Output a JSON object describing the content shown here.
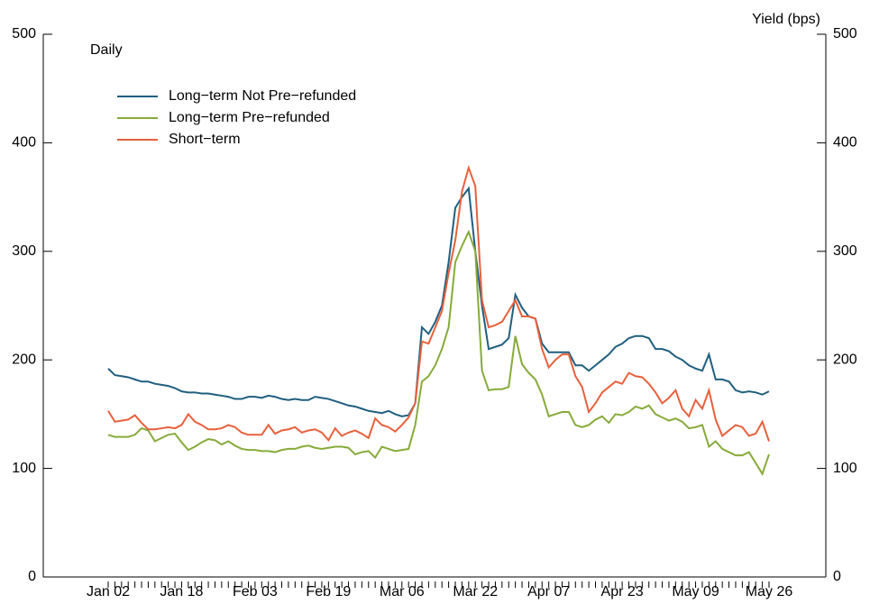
{
  "chart_data": {
    "type": "line",
    "y2label": "Yield (bps)",
    "annotation": "Daily",
    "legend": "upper left",
    "categories": [
      "Jan 02",
      null,
      null,
      null,
      null,
      null,
      null,
      null,
      null,
      null,
      null,
      "Jan 18",
      null,
      null,
      null,
      null,
      null,
      null,
      null,
      null,
      null,
      null,
      "Feb 03",
      null,
      null,
      null,
      null,
      null,
      null,
      null,
      null,
      null,
      null,
      "Feb 19",
      null,
      null,
      null,
      null,
      null,
      null,
      null,
      null,
      null,
      null,
      "Mar 06",
      null,
      null,
      null,
      null,
      null,
      null,
      null,
      null,
      null,
      null,
      "Mar 22",
      null,
      null,
      null,
      null,
      null,
      null,
      null,
      null,
      null,
      null,
      "Apr 07",
      null,
      null,
      null,
      null,
      null,
      null,
      null,
      null,
      null,
      null,
      "Apr 23",
      null,
      null,
      null,
      null,
      null,
      null,
      null,
      null,
      null,
      null,
      "May 09",
      null,
      null,
      null,
      null,
      null,
      null,
      null,
      null,
      null,
      null,
      "May 26"
    ],
    "series": [
      {
        "name": "Long−term Not Pre−refunded",
        "color": "#1f5f80",
        "values": [
          192,
          186,
          185,
          184,
          182,
          180,
          180,
          178,
          177,
          176,
          174,
          171,
          170,
          170,
          169,
          169,
          168,
          167,
          166,
          164,
          164,
          166,
          166,
          165,
          167,
          166,
          164,
          163,
          164,
          163,
          163,
          166,
          165,
          164,
          162,
          160,
          158,
          157,
          155,
          153,
          152,
          151,
          153,
          150,
          148,
          149,
          160,
          230,
          224,
          235,
          250,
          290,
          340,
          350,
          358,
          300,
          250,
          210,
          212,
          214,
          220,
          260,
          248,
          240,
          238,
          215,
          207,
          207,
          207,
          207,
          195,
          195,
          190,
          195,
          200,
          205,
          212,
          215,
          220,
          222,
          222,
          220,
          210,
          210,
          208,
          203,
          200,
          195,
          192,
          190,
          205,
          182,
          182,
          180,
          172,
          170,
          171,
          170,
          168,
          171
        ]
      },
      {
        "name": "Long−term Pre−refunded",
        "color": "#86ab3a",
        "values": [
          131,
          129,
          129,
          129,
          131,
          137,
          135,
          125,
          128,
          131,
          132,
          124,
          117,
          120,
          124,
          127,
          126,
          122,
          125,
          121,
          118,
          117,
          117,
          116,
          116,
          115,
          117,
          118,
          118,
          120,
          121,
          119,
          118,
          119,
          120,
          120,
          119,
          113,
          115,
          116,
          110,
          120,
          118,
          116,
          117,
          118,
          140,
          180,
          185,
          195,
          210,
          230,
          290,
          305,
          318,
          300,
          190,
          172,
          173,
          173,
          175,
          222,
          196,
          188,
          182,
          168,
          148,
          150,
          152,
          152,
          140,
          138,
          140,
          145,
          148,
          142,
          150,
          149,
          152,
          157,
          155,
          158,
          150,
          147,
          144,
          146,
          143,
          137,
          138,
          140,
          120,
          125,
          118,
          115,
          112,
          112,
          115,
          105,
          95,
          113
        ]
      },
      {
        "name": "Short−term",
        "color": "#e8603c",
        "values": [
          153,
          143,
          144,
          145,
          149,
          142,
          136,
          136,
          137,
          138,
          137,
          140,
          150,
          143,
          140,
          136,
          136,
          137,
          140,
          138,
          133,
          131,
          131,
          131,
          140,
          132,
          135,
          136,
          138,
          133,
          135,
          136,
          133,
          126,
          137,
          130,
          133,
          135,
          132,
          128,
          146,
          140,
          138,
          134,
          140,
          147,
          160,
          217,
          215,
          230,
          245,
          280,
          310,
          355,
          377,
          360,
          255,
          230,
          232,
          235,
          245,
          255,
          240,
          240,
          238,
          210,
          193,
          200,
          205,
          205,
          185,
          175,
          152,
          160,
          170,
          175,
          180,
          178,
          188,
          185,
          184,
          178,
          170,
          160,
          165,
          172,
          155,
          148,
          163,
          155,
          172,
          145,
          130,
          135,
          140,
          138,
          130,
          132,
          143,
          125
        ]
      }
    ],
    "ylim": [
      0,
      500
    ],
    "yticks": [
      0,
      100,
      200,
      300,
      400,
      500
    ],
    "y2lim": [
      0,
      500
    ],
    "y2ticks": [
      0,
      100,
      200,
      300,
      400,
      500
    ]
  }
}
